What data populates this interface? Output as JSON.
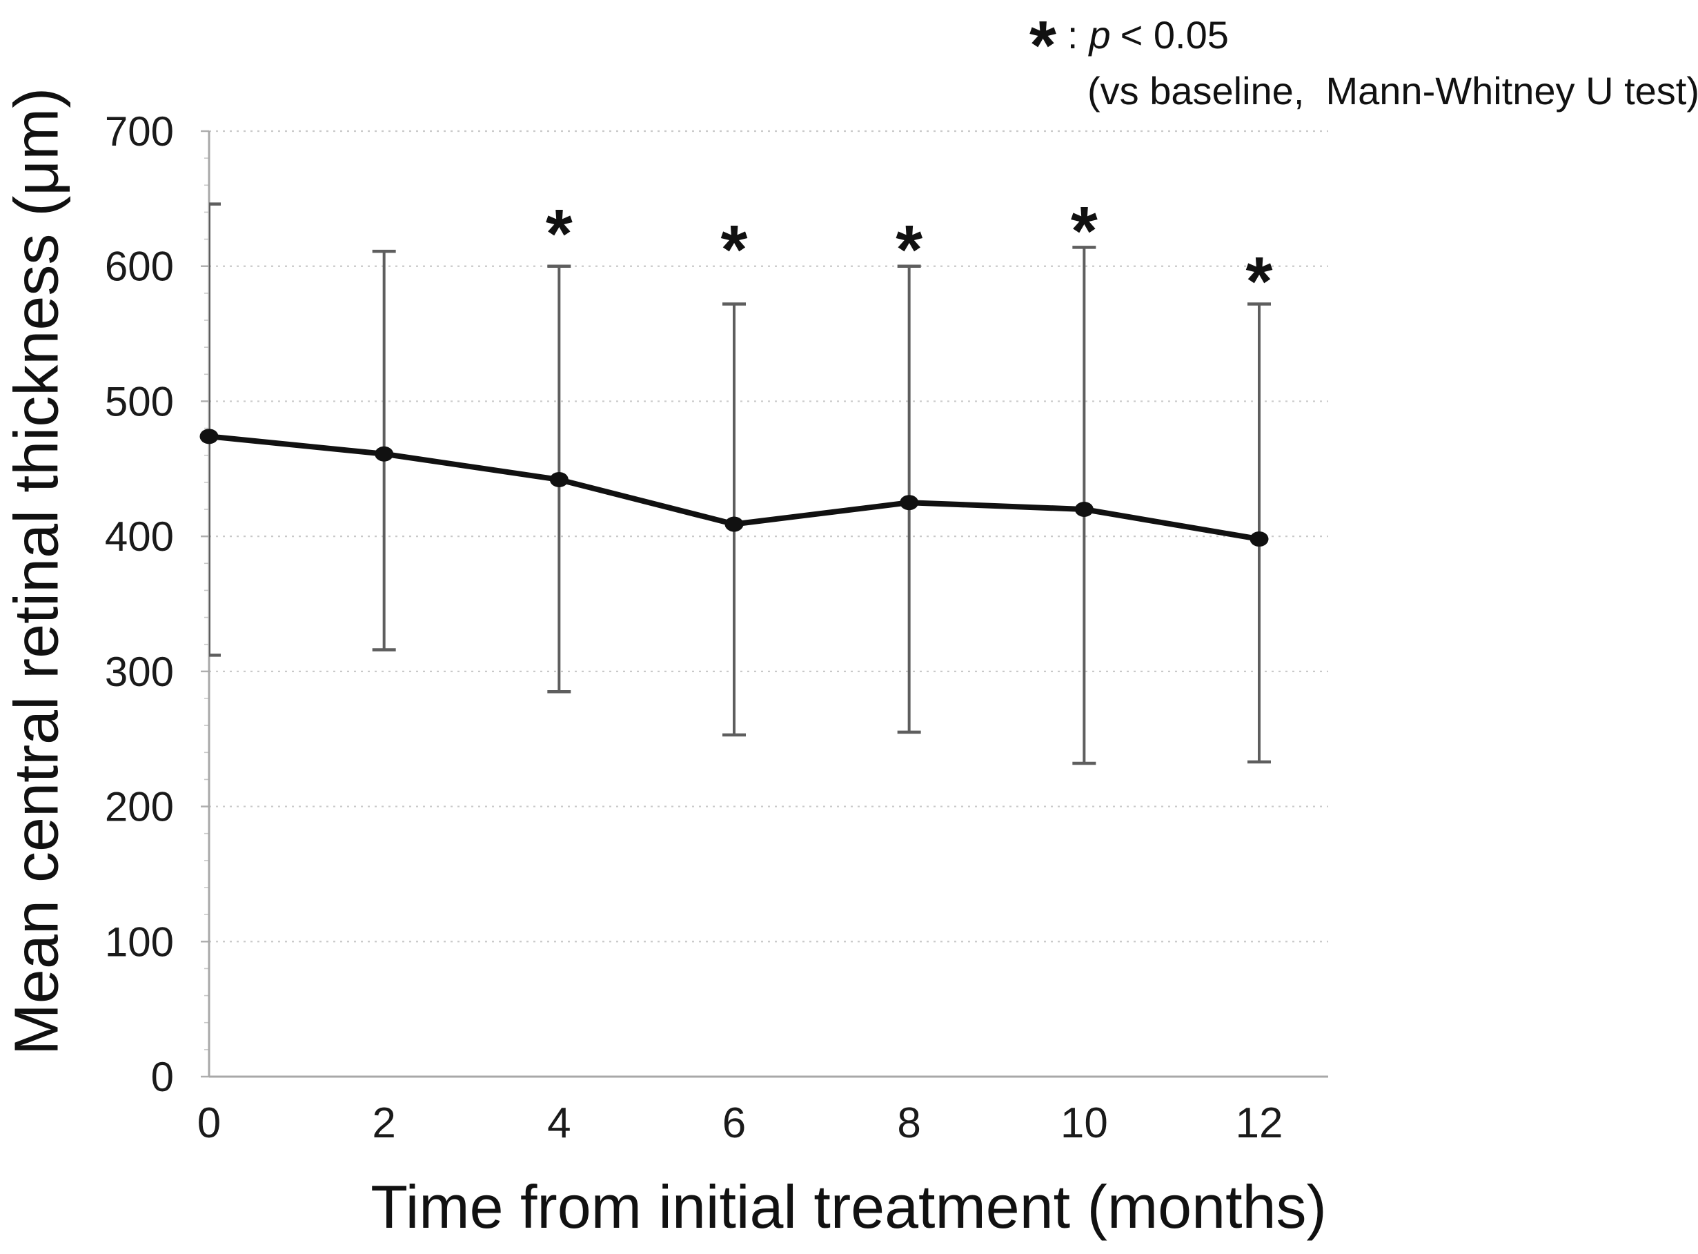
{
  "annotation": {
    "symbol": "*",
    "colon": ":",
    "p_label": "p",
    "p_value": "< 0.05",
    "line2": "(vs baseline,  Mann-Whitney U test)"
  },
  "chart_data": {
    "type": "line",
    "title": "",
    "xlabel": "Time from initial treatment (months)",
    "ylabel": "Mean central retinal thickness (μm)",
    "x": [
      0,
      2,
      4,
      6,
      8,
      10,
      12
    ],
    "xticks": [
      "0",
      "2",
      "4",
      "6",
      "8",
      "10",
      "12"
    ],
    "yticks": [
      0,
      100,
      200,
      300,
      400,
      500,
      600,
      700
    ],
    "ylim": [
      0,
      700
    ],
    "xlim": [
      0,
      12.8
    ],
    "grid": "horizontal-dotted",
    "legend_position": "none",
    "error_bars": "mean ± SD, capped",
    "significance_note": "* : p < 0.05 (vs baseline, Mann-Whitney U test)",
    "series": [
      {
        "name": "Mean central retinal thickness",
        "marker": "filled-circle",
        "values": [
          474,
          461,
          442,
          409,
          425,
          420,
          398
        ],
        "error_upper": [
          646,
          611,
          600,
          572,
          600,
          614,
          572
        ],
        "error_lower": [
          312,
          316,
          285,
          253,
          255,
          232,
          233
        ],
        "significant_vs_baseline": [
          false,
          false,
          true,
          true,
          true,
          true,
          true
        ]
      }
    ],
    "colors": {
      "line": "#111111",
      "marker": "#111111",
      "error_bar": "#5e5e5e",
      "grid": "#c9c9c9",
      "axis": "#a8a8a8",
      "text": "#1a1a1a"
    }
  }
}
